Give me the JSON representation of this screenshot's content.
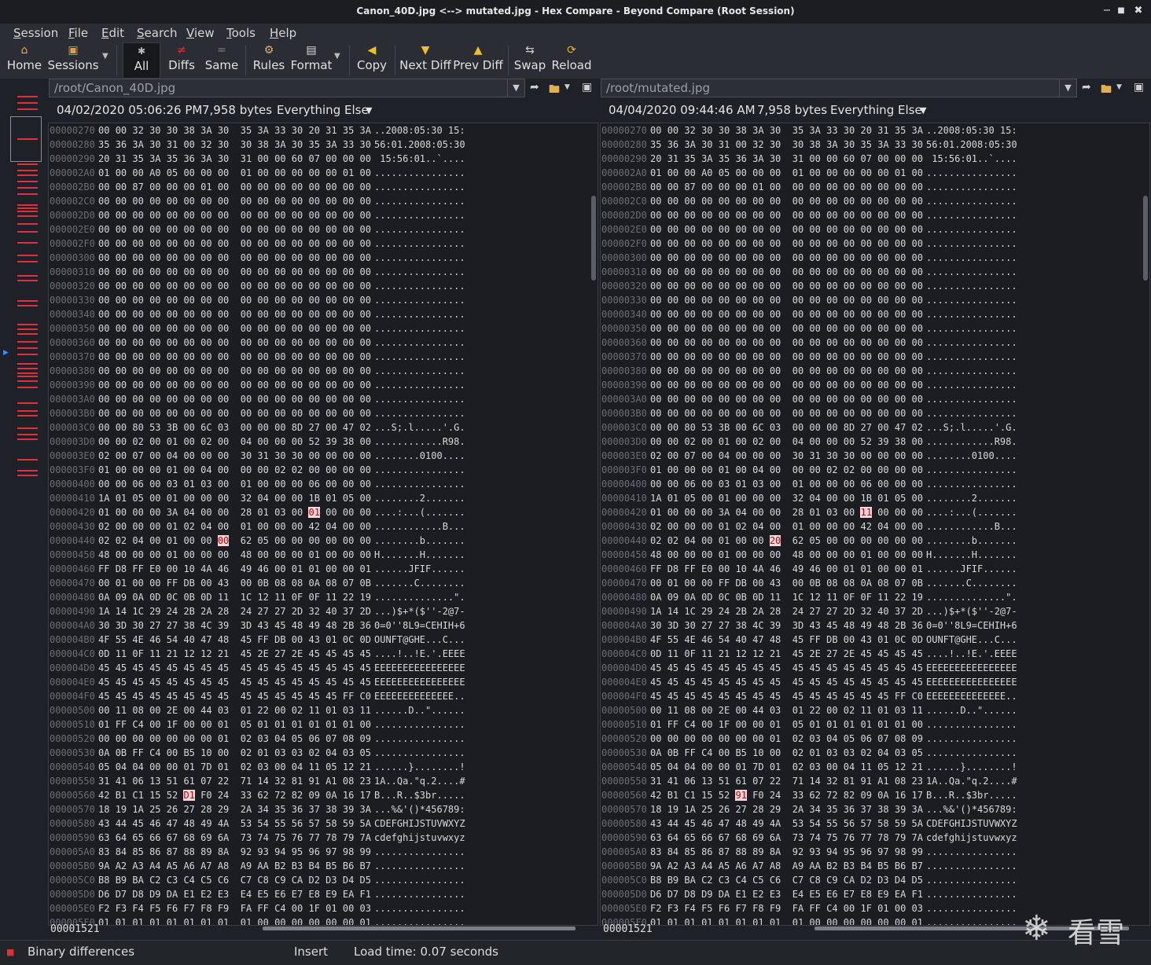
{
  "window": {
    "title": "Canon_40D.jpg <--> mutated.jpg - Hex Compare - Beyond Compare (Root Session)",
    "minimize": "−",
    "maximize": "■",
    "close": "✖"
  },
  "menu": [
    {
      "u": "S",
      "rest": "ession"
    },
    {
      "u": "F",
      "rest": "ile"
    },
    {
      "u": "E",
      "rest": "dit"
    },
    {
      "u": "S",
      "rest": "earch"
    },
    {
      "u": "V",
      "rest": "iew"
    },
    {
      "u": "T",
      "rest": "ools"
    },
    {
      "u": "H",
      "rest": "elp"
    }
  ],
  "toolbar": {
    "home": "Home",
    "sessions": "Sessions",
    "all": "All",
    "diffs": "Diffs",
    "same": "Same",
    "rules": "Rules",
    "format": "Format",
    "copy": "Copy",
    "next_diff": "Next Diff",
    "prev_diff": "Prev Diff",
    "swap": "Swap",
    "reload": "Reload"
  },
  "colors": {
    "accent_diff": "#e0303a",
    "highlight_bg": "#fbd7dc",
    "highlight_fg": "#c80000"
  },
  "left": {
    "path": "/root/Canon_40D.jpg",
    "date": "04/02/2020 05:06:26 PM",
    "size": "7,958 bytes",
    "format": "Everything Else",
    "offset": "00001521",
    "diffs": {
      "00000420": [
        12
      ],
      "00000440": [
        7
      ],
      "00000560": [
        5
      ]
    }
  },
  "right": {
    "path": "/root/mutated.jpg",
    "date": "04/04/2020 09:44:46 AM",
    "size": "7,958 bytes",
    "format": "Everything Else",
    "offset": "00001521",
    "diffs": {
      "00000420": [
        12
      ],
      "00000440": [
        7
      ],
      "00000560": [
        5
      ]
    },
    "overrides": {
      "00000420": "01 00 00 00 3A 04 00 00 28 01 03 00 11 00 00 00",
      "00000440": "02 02 04 00 01 00 00 20 62 05 00 00 00 00 00 00",
      "00000560": "42 B1 C1 15 52 91 F0 24 33 62 72 82 09 0A 16 17"
    }
  },
  "rows": [
    [
      "00000270",
      "00 00 32 30 30 38 3A 30 35 3A 33 30 20 31 35 3A",
      "..2008:05:30 15:"
    ],
    [
      "00000280",
      "35 36 3A 30 31 00 32 30 30 38 3A 30 35 3A 33 30",
      "56:01.2008:05:30"
    ],
    [
      "00000290",
      "20 31 35 3A 35 36 3A 30 31 00 00 60 07 00 00 00",
      " 15:56:01..`...."
    ],
    [
      "000002A0",
      "01 00 00 A0 05 00 00 00 01 00 00 00 00 00 01 00",
      "................"
    ],
    [
      "000002B0",
      "00 00 87 00 00 00 01 00 00 00 00 00 00 00 00 00",
      "................"
    ],
    [
      "000002C0",
      "00 00 00 00 00 00 00 00 00 00 00 00 00 00 00 00",
      "................"
    ],
    [
      "000002D0",
      "00 00 00 00 00 00 00 00 00 00 00 00 00 00 00 00",
      "................"
    ],
    [
      "000002E0",
      "00 00 00 00 00 00 00 00 00 00 00 00 00 00 00 00",
      "................"
    ],
    [
      "000002F0",
      "00 00 00 00 00 00 00 00 00 00 00 00 00 00 00 00",
      "................"
    ],
    [
      "00000300",
      "00 00 00 00 00 00 00 00 00 00 00 00 00 00 00 00",
      "................"
    ],
    [
      "00000310",
      "00 00 00 00 00 00 00 00 00 00 00 00 00 00 00 00",
      "................"
    ],
    [
      "00000320",
      "00 00 00 00 00 00 00 00 00 00 00 00 00 00 00 00",
      "................"
    ],
    [
      "00000330",
      "00 00 00 00 00 00 00 00 00 00 00 00 00 00 00 00",
      "................"
    ],
    [
      "00000340",
      "00 00 00 00 00 00 00 00 00 00 00 00 00 00 00 00",
      "................"
    ],
    [
      "00000350",
      "00 00 00 00 00 00 00 00 00 00 00 00 00 00 00 00",
      "................"
    ],
    [
      "00000360",
      "00 00 00 00 00 00 00 00 00 00 00 00 00 00 00 00",
      "................"
    ],
    [
      "00000370",
      "00 00 00 00 00 00 00 00 00 00 00 00 00 00 00 00",
      "................"
    ],
    [
      "00000380",
      "00 00 00 00 00 00 00 00 00 00 00 00 00 00 00 00",
      "................"
    ],
    [
      "00000390",
      "00 00 00 00 00 00 00 00 00 00 00 00 00 00 00 00",
      "................"
    ],
    [
      "000003A0",
      "00 00 00 00 00 00 00 00 00 00 00 00 00 00 00 00",
      "................"
    ],
    [
      "000003B0",
      "00 00 00 00 00 00 00 00 00 00 00 00 00 00 00 00",
      "................"
    ],
    [
      "000003C0",
      "00 00 80 53 3B 00 6C 03 00 00 00 8D 27 00 47 02",
      "...S;.l.....'.G."
    ],
    [
      "000003D0",
      "00 00 02 00 01 00 02 00 04 00 00 00 52 39 38 00",
      "............R98."
    ],
    [
      "000003E0",
      "02 00 07 00 04 00 00 00 30 31 30 30 00 00 00 00",
      "........0100...."
    ],
    [
      "000003F0",
      "01 00 00 00 01 00 04 00 00 00 02 02 00 00 00 00",
      "................"
    ],
    [
      "00000400",
      "00 00 06 00 03 01 03 00 01 00 00 00 06 00 00 00",
      "................"
    ],
    [
      "00000410",
      "1A 01 05 00 01 00 00 00 32 04 00 00 1B 01 05 00",
      "........2......."
    ],
    [
      "00000420",
      "01 00 00 00 3A 04 00 00 28 01 03 00 01 00 00 00",
      "....:...(......."
    ],
    [
      "00000430",
      "02 00 00 00 01 02 04 00 01 00 00 00 42 04 00 00",
      "............B..."
    ],
    [
      "00000440",
      "02 02 04 00 01 00 00 00 62 05 00 00 00 00 00 00",
      "........b......."
    ],
    [
      "00000450",
      "48 00 00 00 01 00 00 00 48 00 00 00 01 00 00 00",
      "H.......H......."
    ],
    [
      "00000460",
      "FF D8 FF E0 00 10 4A 46 49 46 00 01 01 00 00 01",
      "......JFIF......"
    ],
    [
      "00000470",
      "00 01 00 00 FF DB 00 43 00 0B 08 08 0A 08 07 0B",
      ".......C........"
    ],
    [
      "00000480",
      "0A 09 0A 0D 0C 0B 0D 11 1C 12 11 0F 0F 11 22 19",
      "..............\"."
    ],
    [
      "00000490",
      "1A 14 1C 29 24 2B 2A 28 24 27 27 2D 32 40 37 2D",
      "...)$+*($''-2@7-"
    ],
    [
      "000004A0",
      "30 3D 30 27 27 38 4C 39 3D 43 45 48 49 48 2B 36",
      "0=0''8L9=CEHIH+6"
    ],
    [
      "000004B0",
      "4F 55 4E 46 54 40 47 48 45 FF DB 00 43 01 0C 0D",
      "OUNFT@GHE...C..."
    ],
    [
      "000004C0",
      "0D 11 0F 11 21 12 12 21 45 2E 27 2E 45 45 45 45",
      "....!..!E.'.EEEE"
    ],
    [
      "000004D0",
      "45 45 45 45 45 45 45 45 45 45 45 45 45 45 45 45",
      "EEEEEEEEEEEEEEEE"
    ],
    [
      "000004E0",
      "45 45 45 45 45 45 45 45 45 45 45 45 45 45 45 45",
      "EEEEEEEEEEEEEEEE"
    ],
    [
      "000004F0",
      "45 45 45 45 45 45 45 45 45 45 45 45 45 45 FF C0",
      "EEEEEEEEEEEEEE.."
    ],
    [
      "00000500",
      "00 11 08 00 2E 00 44 03 01 22 00 02 11 01 03 11",
      "......D..\"......"
    ],
    [
      "00000510",
      "01 FF C4 00 1F 00 00 01 05 01 01 01 01 01 01 00",
      "................"
    ],
    [
      "00000520",
      "00 00 00 00 00 00 00 01 02 03 04 05 06 07 08 09",
      "................"
    ],
    [
      "00000530",
      "0A 0B FF C4 00 B5 10 00 02 01 03 03 02 04 03 05",
      "................"
    ],
    [
      "00000540",
      "05 04 04 00 00 01 7D 01 02 03 00 04 11 05 12 21",
      "......}........!"
    ],
    [
      "00000550",
      "31 41 06 13 51 61 07 22 71 14 32 81 91 A1 08 23",
      "1A..Qa.\"q.2....#"
    ],
    [
      "00000560",
      "42 B1 C1 15 52 D1 F0 24 33 62 72 82 09 0A 16 17",
      "B...R..$3br....."
    ],
    [
      "00000570",
      "18 19 1A 25 26 27 28 29 2A 34 35 36 37 38 39 3A",
      "...%&'()*456789:"
    ],
    [
      "00000580",
      "43 44 45 46 47 48 49 4A 53 54 55 56 57 58 59 5A",
      "CDEFGHIJSTUVWXYZ"
    ],
    [
      "00000590",
      "63 64 65 66 67 68 69 6A 73 74 75 76 77 78 79 7A",
      "cdefghijstuvwxyz"
    ],
    [
      "000005A0",
      "83 84 85 86 87 88 89 8A 92 93 94 95 96 97 98 99",
      "................"
    ],
    [
      "000005B0",
      "9A A2 A3 A4 A5 A6 A7 A8 A9 AA B2 B3 B4 B5 B6 B7",
      "................"
    ],
    [
      "000005C0",
      "B8 B9 BA C2 C3 C4 C5 C6 C7 C8 C9 CA D2 D3 D4 D5",
      "................"
    ],
    [
      "000005D0",
      "D6 D7 D8 D9 DA E1 E2 E3 E4 E5 E6 E7 E8 E9 EA F1",
      "................"
    ],
    [
      "000005E0",
      "F2 F3 F4 F5 F6 F7 F8 F9 FA FF C4 00 1F 01 00 03",
      "................"
    ],
    [
      "000005F0",
      "01 01 01 01 01 01 01 01 01 00 00 00 00 00 00 01",
      "................"
    ]
  ],
  "status": {
    "diff_mode": "Binary differences",
    "insert": "Insert",
    "load_time": "Load time: 0.07 seconds"
  },
  "watermark": {
    "text": "看雪"
  }
}
